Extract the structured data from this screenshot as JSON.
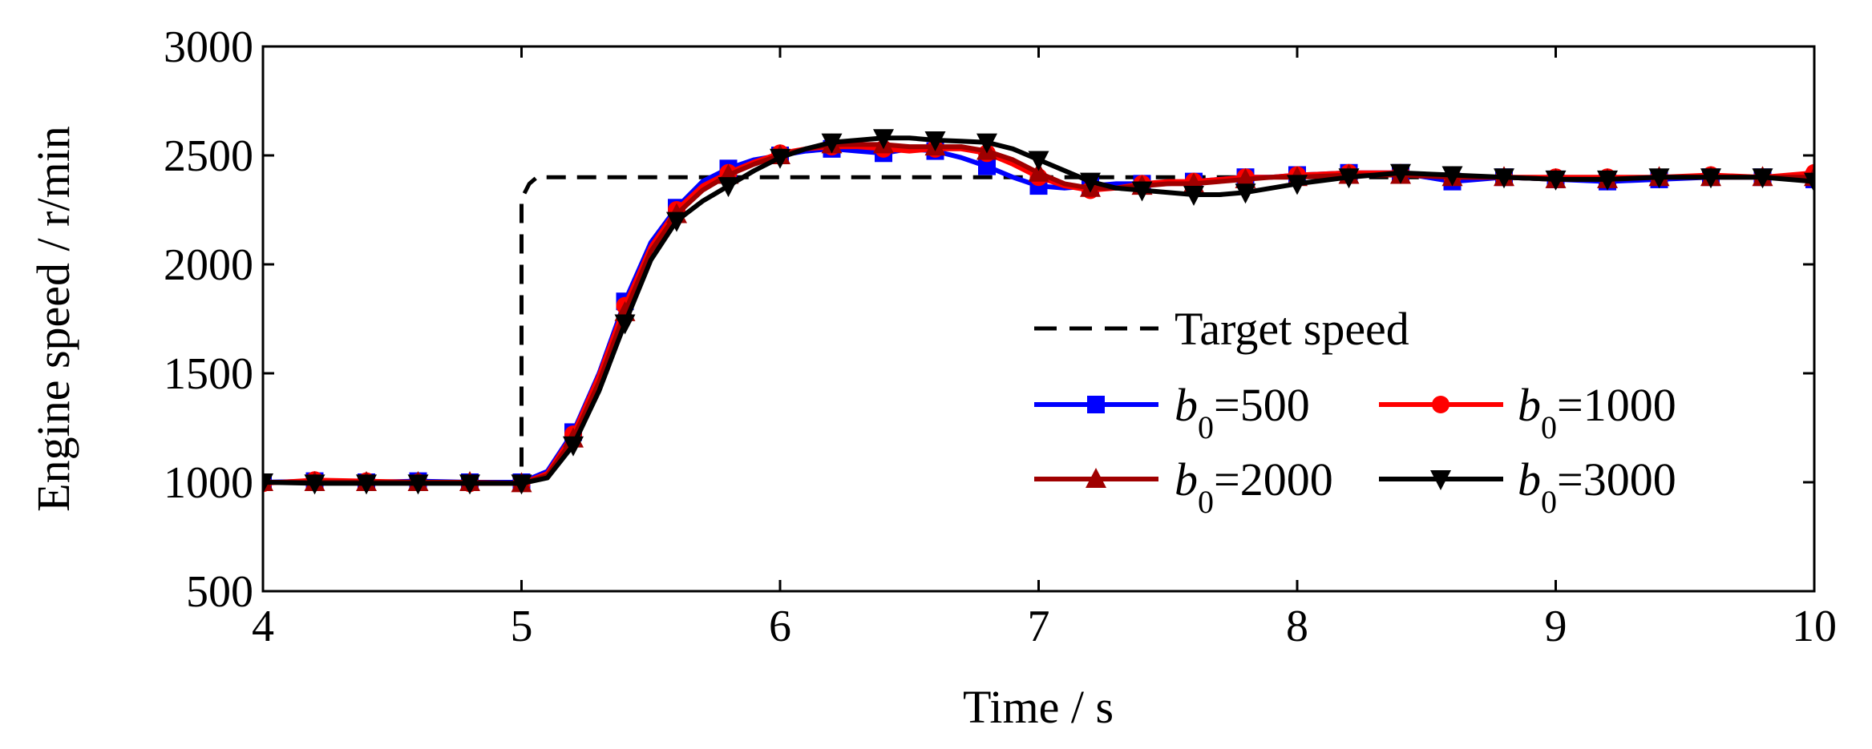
{
  "chart_data": {
    "type": "line",
    "title": "",
    "xlabel": "Time / s",
    "ylabel": "Engine speed / r/min",
    "xlim": [
      4,
      10
    ],
    "ylim": [
      500,
      3000
    ],
    "xticks": [
      4,
      5,
      6,
      7,
      8,
      9,
      10
    ],
    "yticks": [
      500,
      1000,
      1500,
      2000,
      2500,
      3000
    ],
    "grid": false,
    "legend_position": "center-right",
    "series": [
      {
        "name": "Target speed",
        "legend_label": "Target speed",
        "color": "#000000",
        "style": "dashed",
        "marker": "none",
        "x": [
          4.0,
          5.0,
          5.0,
          5.03,
          5.06,
          10.0
        ],
        "y": [
          1000,
          1000,
          2300,
          2370,
          2400,
          2400
        ]
      },
      {
        "name": "b0=500",
        "legend_var": "b",
        "legend_sub": "0",
        "legend_rest": "=500",
        "color": "#0000ff",
        "style": "solid",
        "marker": "square",
        "x": [
          4.0,
          4.2,
          4.4,
          4.6,
          4.8,
          5.0,
          5.1,
          5.2,
          5.3,
          5.4,
          5.5,
          5.6,
          5.7,
          5.8,
          5.9,
          6.0,
          6.1,
          6.2,
          6.3,
          6.4,
          6.5,
          6.6,
          6.7,
          6.8,
          6.9,
          7.0,
          7.1,
          7.2,
          7.3,
          7.4,
          7.5,
          7.6,
          7.7,
          7.8,
          7.9,
          8.0,
          8.2,
          8.4,
          8.6,
          8.8,
          9.0,
          9.2,
          9.4,
          9.6,
          9.8,
          10.0
        ],
        "y": [
          1000,
          1005,
          1000,
          1005,
          1000,
          1000,
          1050,
          1230,
          1500,
          1830,
          2100,
          2260,
          2380,
          2440,
          2480,
          2500,
          2520,
          2530,
          2520,
          2510,
          2530,
          2520,
          2490,
          2450,
          2400,
          2360,
          2350,
          2360,
          2370,
          2370,
          2370,
          2380,
          2390,
          2400,
          2400,
          2410,
          2420,
          2420,
          2380,
          2400,
          2390,
          2380,
          2390,
          2400,
          2400,
          2390
        ],
        "marker_x": [
          4.0,
          4.2,
          4.4,
          4.6,
          4.8,
          5.0,
          5.2,
          5.4,
          5.6,
          5.8,
          6.0,
          6.2,
          6.4,
          6.6,
          6.8,
          7.0,
          7.2,
          7.4,
          7.6,
          7.8,
          8.0,
          8.2,
          8.4,
          8.6,
          8.8,
          9.0,
          9.2,
          9.4,
          9.6,
          9.8,
          10.0
        ]
      },
      {
        "name": "b0=1000",
        "legend_var": "b",
        "legend_sub": "0",
        "legend_rest": "=1000",
        "color": "#ff0000",
        "style": "solid",
        "marker": "circle",
        "x": [
          4.0,
          4.2,
          4.4,
          4.6,
          4.8,
          5.0,
          5.1,
          5.2,
          5.3,
          5.4,
          5.5,
          5.6,
          5.7,
          5.8,
          5.9,
          6.0,
          6.1,
          6.2,
          6.3,
          6.4,
          6.5,
          6.6,
          6.7,
          6.8,
          6.9,
          7.0,
          7.1,
          7.2,
          7.3,
          7.4,
          7.5,
          7.6,
          7.7,
          7.8,
          7.9,
          8.0,
          8.2,
          8.4,
          8.6,
          8.8,
          9.0,
          9.2,
          9.4,
          9.6,
          9.8,
          10.0
        ],
        "y": [
          995,
          1010,
          1005,
          1000,
          995,
          995,
          1040,
          1220,
          1490,
          1810,
          2080,
          2250,
          2360,
          2420,
          2470,
          2510,
          2530,
          2540,
          2540,
          2530,
          2520,
          2530,
          2530,
          2510,
          2460,
          2400,
          2360,
          2340,
          2350,
          2370,
          2380,
          2380,
          2390,
          2400,
          2400,
          2410,
          2420,
          2420,
          2400,
          2400,
          2400,
          2400,
          2400,
          2410,
          2400,
          2420
        ],
        "marker_x": [
          4.0,
          4.2,
          4.4,
          4.6,
          4.8,
          5.0,
          5.2,
          5.4,
          5.6,
          5.8,
          6.0,
          6.2,
          6.4,
          6.6,
          6.8,
          7.0,
          7.2,
          7.4,
          7.6,
          7.8,
          8.0,
          8.2,
          8.4,
          8.6,
          8.8,
          9.0,
          9.2,
          9.4,
          9.6,
          9.8,
          10.0
        ]
      },
      {
        "name": "b0=2000",
        "legend_var": "b",
        "legend_sub": "0",
        "legend_rest": "=2000",
        "color": "#a00000",
        "style": "solid",
        "marker": "triangle-up",
        "x": [
          4.0,
          4.2,
          4.4,
          4.6,
          4.8,
          5.0,
          5.1,
          5.2,
          5.3,
          5.4,
          5.5,
          5.6,
          5.7,
          5.8,
          5.9,
          6.0,
          6.1,
          6.2,
          6.3,
          6.4,
          6.5,
          6.6,
          6.7,
          6.8,
          6.9,
          7.0,
          7.1,
          7.2,
          7.3,
          7.4,
          7.5,
          7.6,
          7.7,
          7.8,
          7.9,
          8.0,
          8.2,
          8.4,
          8.6,
          8.8,
          9.0,
          9.2,
          9.4,
          9.6,
          9.8,
          10.0
        ],
        "y": [
          1000,
          1000,
          1000,
          1000,
          1000,
          995,
          1030,
          1200,
          1460,
          1780,
          2060,
          2230,
          2340,
          2410,
          2460,
          2500,
          2530,
          2550,
          2550,
          2550,
          2540,
          2540,
          2540,
          2520,
          2480,
          2420,
          2370,
          2350,
          2350,
          2360,
          2370,
          2370,
          2380,
          2390,
          2400,
          2400,
          2410,
          2410,
          2400,
          2400,
          2390,
          2390,
          2400,
          2400,
          2400,
          2400
        ],
        "marker_x": [
          4.0,
          4.2,
          4.4,
          4.6,
          4.8,
          5.0,
          5.2,
          5.4,
          5.6,
          5.8,
          6.0,
          6.2,
          6.4,
          6.6,
          6.8,
          7.0,
          7.2,
          7.4,
          7.6,
          7.8,
          8.0,
          8.2,
          8.4,
          8.6,
          8.8,
          9.0,
          9.2,
          9.4,
          9.6,
          9.8,
          10.0
        ]
      },
      {
        "name": "b0=3000",
        "legend_var": "b",
        "legend_sub": "0",
        "legend_rest": "=3000",
        "color": "#000000",
        "style": "solid",
        "marker": "triangle-down",
        "x": [
          4.0,
          4.2,
          4.4,
          4.6,
          4.8,
          5.0,
          5.1,
          5.2,
          5.3,
          5.4,
          5.5,
          5.6,
          5.7,
          5.8,
          5.9,
          6.0,
          6.1,
          6.2,
          6.3,
          6.4,
          6.5,
          6.6,
          6.7,
          6.8,
          6.9,
          7.0,
          7.1,
          7.2,
          7.3,
          7.4,
          7.5,
          7.6,
          7.7,
          7.8,
          7.9,
          8.0,
          8.2,
          8.4,
          8.6,
          8.8,
          9.0,
          9.2,
          9.4,
          9.6,
          9.8,
          10.0
        ],
        "y": [
          1000,
          995,
          995,
          995,
          995,
          995,
          1020,
          1170,
          1420,
          1730,
          2020,
          2200,
          2290,
          2360,
          2430,
          2490,
          2530,
          2560,
          2570,
          2580,
          2580,
          2570,
          2565,
          2560,
          2530,
          2480,
          2430,
          2380,
          2350,
          2340,
          2330,
          2320,
          2320,
          2330,
          2350,
          2370,
          2400,
          2420,
          2410,
          2400,
          2390,
          2390,
          2400,
          2400,
          2400,
          2380
        ],
        "marker_x": [
          4.0,
          4.2,
          4.4,
          4.6,
          4.8,
          5.0,
          5.2,
          5.4,
          5.6,
          5.8,
          6.0,
          6.2,
          6.4,
          6.6,
          6.8,
          7.0,
          7.2,
          7.4,
          7.6,
          7.8,
          8.0,
          8.2,
          8.4,
          8.6,
          8.8,
          9.0,
          9.2,
          9.4,
          9.6,
          9.8,
          10.0
        ]
      }
    ]
  }
}
